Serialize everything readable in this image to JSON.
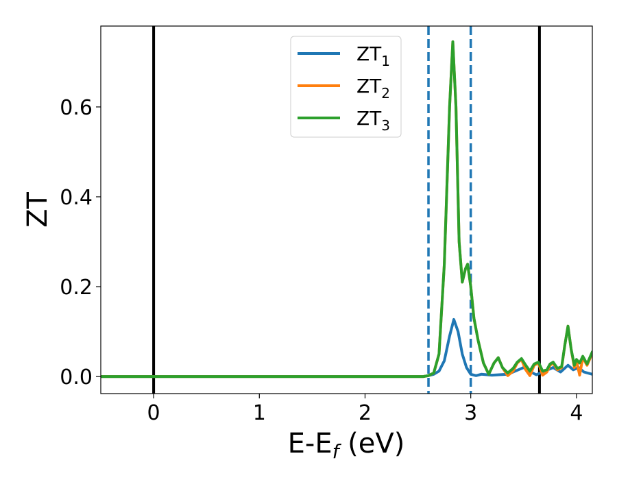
{
  "chart_data": {
    "type": "line",
    "xlabel_main": "E-E",
    "xlabel_sub": "f",
    "xlabel_unit": " (eV)",
    "ylabel": "ZT",
    "xlim": [
      -0.5,
      4.15
    ],
    "ylim": [
      -0.038,
      0.78
    ],
    "x_ticks": [
      0,
      1,
      2,
      3,
      4
    ],
    "x_tick_labels": [
      "0",
      "1",
      "2",
      "3",
      "4"
    ],
    "y_ticks": [
      0.0,
      0.2,
      0.4,
      0.6
    ],
    "y_tick_labels": [
      "0.0",
      "0.2",
      "0.4",
      "0.6"
    ],
    "grid": false,
    "legend_position": "top-center",
    "vertical_lines": [
      {
        "x": 0.0,
        "style": "solid",
        "color": "#000000"
      },
      {
        "x": 3.65,
        "style": "solid",
        "color": "#000000"
      },
      {
        "x": 2.6,
        "style": "dashed",
        "color": "#1f77b4"
      },
      {
        "x": 3.0,
        "style": "dashed",
        "color": "#1f77b4"
      }
    ],
    "series": [
      {
        "name": "ZT",
        "sub": "1",
        "color": "#1f77b4",
        "points": [
          [
            -0.5,
            0
          ],
          [
            2.55,
            0
          ],
          [
            2.6,
            0.002
          ],
          [
            2.65,
            0.005
          ],
          [
            2.7,
            0.012
          ],
          [
            2.75,
            0.035
          ],
          [
            2.8,
            0.09
          ],
          [
            2.84,
            0.127
          ],
          [
            2.88,
            0.1
          ],
          [
            2.92,
            0.05
          ],
          [
            2.96,
            0.02
          ],
          [
            3.0,
            0.005
          ],
          [
            3.05,
            0.002
          ],
          [
            3.1,
            0.005
          ],
          [
            3.2,
            0.003
          ],
          [
            3.35,
            0.005
          ],
          [
            3.45,
            0.015
          ],
          [
            3.5,
            0.02
          ],
          [
            3.55,
            0.012
          ],
          [
            3.62,
            0.004
          ],
          [
            3.7,
            0.012
          ],
          [
            3.78,
            0.02
          ],
          [
            3.85,
            0.01
          ],
          [
            3.92,
            0.025
          ],
          [
            3.97,
            0.015
          ],
          [
            4.02,
            0.02
          ],
          [
            4.07,
            0.01
          ],
          [
            4.15,
            0.005
          ]
        ]
      },
      {
        "name": "ZT",
        "sub": "2",
        "color": "#ff7f0e",
        "points": [
          [
            -0.5,
            0
          ],
          [
            2.55,
            0
          ],
          [
            2.6,
            0.002
          ],
          [
            2.65,
            0.008
          ],
          [
            2.7,
            0.05
          ],
          [
            2.75,
            0.25
          ],
          [
            2.8,
            0.6
          ],
          [
            2.83,
            0.745
          ],
          [
            2.86,
            0.6
          ],
          [
            2.89,
            0.3
          ],
          [
            2.92,
            0.21
          ],
          [
            2.95,
            0.24
          ],
          [
            2.97,
            0.25
          ],
          [
            3.0,
            0.2
          ],
          [
            3.03,
            0.13
          ],
          [
            3.07,
            0.08
          ],
          [
            3.12,
            0.03
          ],
          [
            3.17,
            0.005
          ],
          [
            3.22,
            0.03
          ],
          [
            3.26,
            0.042
          ],
          [
            3.3,
            0.02
          ],
          [
            3.35,
            0.002
          ],
          [
            3.4,
            0.012
          ],
          [
            3.44,
            0.03
          ],
          [
            3.48,
            0.038
          ],
          [
            3.52,
            0.015
          ],
          [
            3.56,
            0.002
          ],
          [
            3.6,
            0.025
          ],
          [
            3.64,
            0.03
          ],
          [
            3.68,
            0.003
          ],
          [
            3.72,
            0.01
          ],
          [
            3.75,
            0.025
          ],
          [
            3.78,
            0.03
          ],
          [
            3.82,
            0.015
          ],
          [
            3.86,
            0.02
          ],
          [
            3.89,
            0.07
          ],
          [
            3.92,
            0.112
          ],
          [
            3.95,
            0.06
          ],
          [
            3.98,
            0.02
          ],
          [
            4.0,
            0.035
          ],
          [
            4.03,
            0.003
          ],
          [
            4.06,
            0.042
          ],
          [
            4.1,
            0.025
          ],
          [
            4.15,
            0.052
          ]
        ]
      },
      {
        "name": "ZT",
        "sub": "3",
        "color": "#2ca02c",
        "points": [
          [
            -0.5,
            0
          ],
          [
            2.55,
            0
          ],
          [
            2.6,
            0.002
          ],
          [
            2.65,
            0.008
          ],
          [
            2.7,
            0.05
          ],
          [
            2.75,
            0.25
          ],
          [
            2.8,
            0.6
          ],
          [
            2.83,
            0.745
          ],
          [
            2.86,
            0.6
          ],
          [
            2.89,
            0.3
          ],
          [
            2.92,
            0.21
          ],
          [
            2.95,
            0.24
          ],
          [
            2.97,
            0.25
          ],
          [
            3.0,
            0.2
          ],
          [
            3.03,
            0.13
          ],
          [
            3.07,
            0.08
          ],
          [
            3.12,
            0.03
          ],
          [
            3.17,
            0.005
          ],
          [
            3.22,
            0.03
          ],
          [
            3.26,
            0.042
          ],
          [
            3.3,
            0.02
          ],
          [
            3.35,
            0.008
          ],
          [
            3.4,
            0.018
          ],
          [
            3.44,
            0.032
          ],
          [
            3.48,
            0.04
          ],
          [
            3.52,
            0.025
          ],
          [
            3.56,
            0.012
          ],
          [
            3.6,
            0.028
          ],
          [
            3.64,
            0.032
          ],
          [
            3.68,
            0.012
          ],
          [
            3.72,
            0.015
          ],
          [
            3.75,
            0.028
          ],
          [
            3.78,
            0.032
          ],
          [
            3.82,
            0.018
          ],
          [
            3.86,
            0.022
          ],
          [
            3.89,
            0.07
          ],
          [
            3.92,
            0.112
          ],
          [
            3.95,
            0.06
          ],
          [
            3.98,
            0.025
          ],
          [
            4.0,
            0.038
          ],
          [
            4.03,
            0.03
          ],
          [
            4.06,
            0.045
          ],
          [
            4.1,
            0.028
          ],
          [
            4.15,
            0.055
          ]
        ]
      }
    ]
  }
}
